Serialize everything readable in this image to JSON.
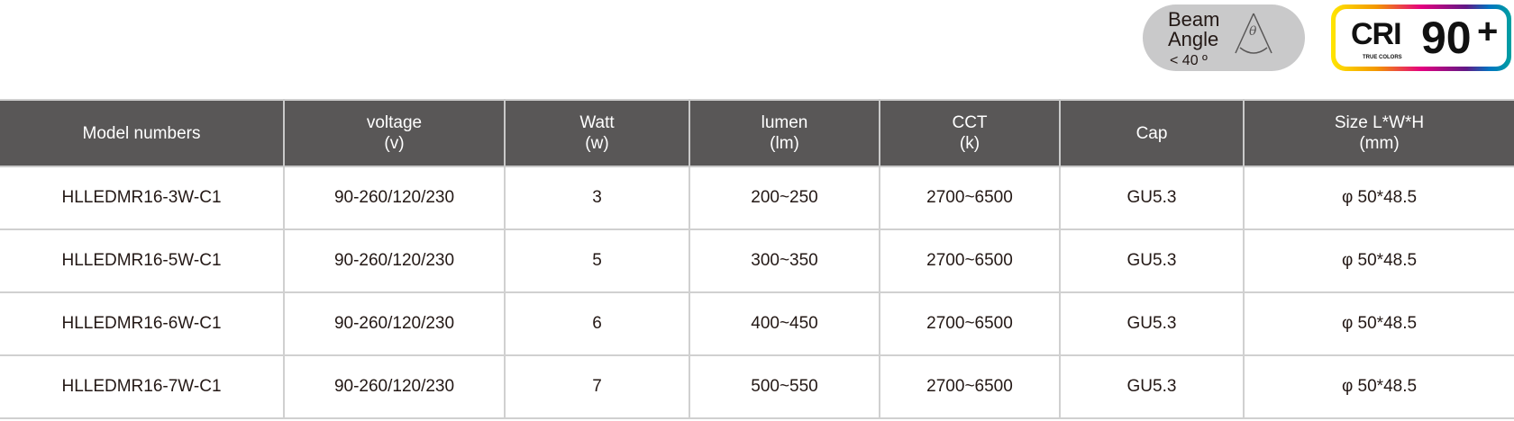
{
  "badges": {
    "beam": {
      "line1": "Beam",
      "line2": "Angle",
      "value": "< 40 º",
      "symbol": "θ",
      "bg": "#c9c9ca"
    },
    "cri": {
      "label": "CRI",
      "sub": "TRUE COLORS",
      "value": "90",
      "plus": "+"
    }
  },
  "table": {
    "header_bg": "#595757",
    "headers": [
      {
        "l1": "Model numbers",
        "l2": ""
      },
      {
        "l1": "voltage",
        "l2": "(v)"
      },
      {
        "l1": "Watt",
        "l2": "(w)"
      },
      {
        "l1": "lumen",
        "l2": "(lm)"
      },
      {
        "l1": "CCT",
        "l2": "(k)"
      },
      {
        "l1": "Cap",
        "l2": ""
      },
      {
        "l1": "Size L*W*H",
        "l2": "(mm)"
      }
    ],
    "rows": [
      [
        "HLLEDMR16-3W-C1",
        "90-260/120/230",
        "3",
        "200~250",
        "2700~6500",
        "GU5.3",
        "φ 50*48.5"
      ],
      [
        "HLLEDMR16-5W-C1",
        "90-260/120/230",
        "5",
        "300~350",
        "2700~6500",
        "GU5.3",
        "φ 50*48.5"
      ],
      [
        "HLLEDMR16-6W-C1",
        "90-260/120/230",
        "6",
        "400~450",
        "2700~6500",
        "GU5.3",
        "φ 50*48.5"
      ],
      [
        "HLLEDMR16-7W-C1",
        "90-260/120/230",
        "7",
        "500~550",
        "2700~6500",
        "GU5.3",
        "φ 50*48.5"
      ]
    ]
  }
}
